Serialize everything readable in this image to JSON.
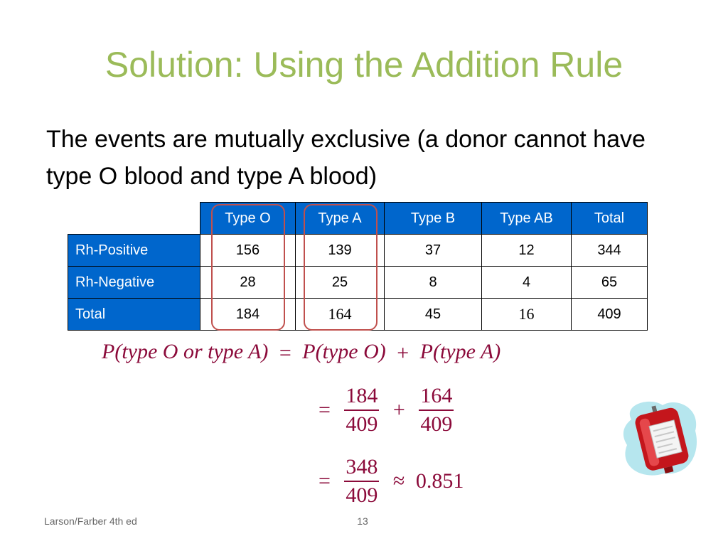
{
  "slide": {
    "title": "Solution: Using the Addition Rule",
    "body": "The events are mutually exclusive (a donor cannot have type O blood and type A blood)"
  },
  "table": {
    "headers": [
      "Type O",
      "Type A",
      "Type B",
      "Type AB",
      "Total"
    ],
    "rows": [
      {
        "label": "Rh-Positive",
        "values": [
          "156",
          "139",
          "37",
          "12",
          "344"
        ]
      },
      {
        "label": "Rh-Negative",
        "values": [
          "28",
          "25",
          "8",
          "4",
          "65"
        ]
      },
      {
        "label": "Total",
        "values": [
          "184",
          "164",
          "45",
          "16",
          "409"
        ]
      }
    ],
    "colors": {
      "header_bg": "#0066cc",
      "header_text": "#ffffff",
      "highlight": "#c0504d"
    }
  },
  "math": {
    "line1_lhs": "P(type O or type A)",
    "line1_eq": "=",
    "line1_rhs_a": "P(type O)",
    "line1_plus": "+",
    "line1_rhs_b": "P(type A)",
    "line2_eq": "=",
    "line2_num1": "184",
    "line2_den1": "409",
    "line2_plus": "+",
    "line2_num2": "164",
    "line2_den2": "409",
    "line3_eq": "=",
    "line3_num": "348",
    "line3_den": "409",
    "line3_approx": "≈",
    "line3_result": "0.851"
  },
  "footer": {
    "source": "Larson/Farber 4th ed",
    "page": "13"
  },
  "clipart_icon": "blood-bag-icon",
  "colors": {
    "title": "#9bbb59",
    "math": "#8b0a3a"
  }
}
